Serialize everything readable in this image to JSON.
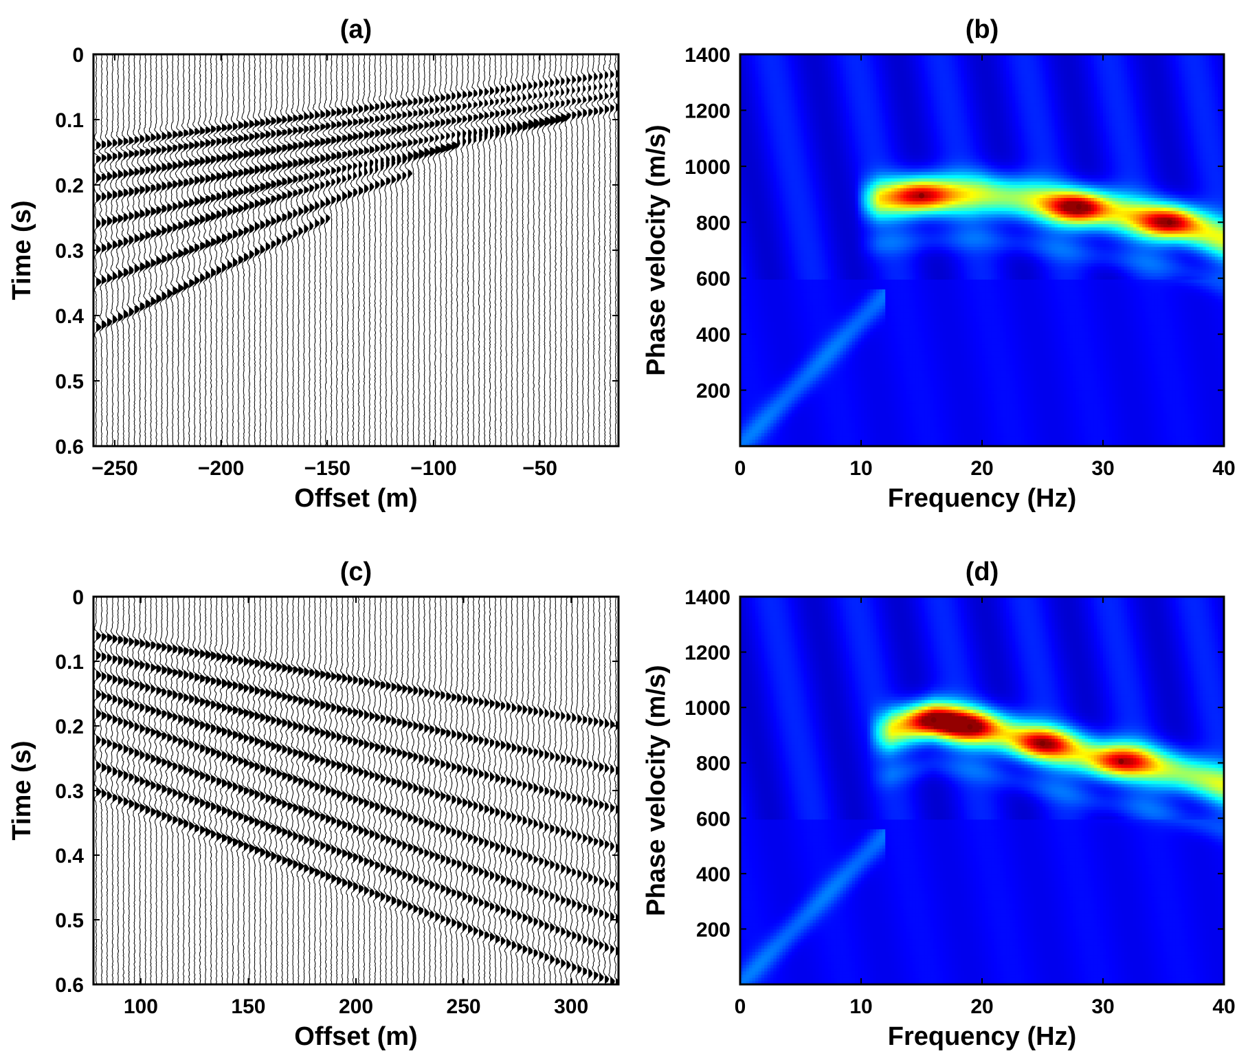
{
  "chart_data": [
    {
      "type": "seismogram",
      "panel": "(a)",
      "title": "(a)",
      "xlabel": "Offset (m)",
      "ylabel": "Time (s)",
      "xlim": [
        -260,
        -13
      ],
      "ylim": [
        0,
        0.6
      ],
      "y_reversed": true,
      "xticks": [
        "−250",
        "−200",
        "−150",
        "−100",
        "−50"
      ],
      "xtick_values": [
        -250,
        -200,
        -150,
        -100,
        -50
      ],
      "yticks": [
        "0",
        "0.1",
        "0.2",
        "0.3",
        "0.4",
        "0.5",
        "0.6"
      ],
      "ytick_values": [
        0,
        0.1,
        0.2,
        0.3,
        0.4,
        0.5,
        0.6
      ],
      "trace_count": 96,
      "wiggle_fill": "#000000",
      "events": [
        {
          "x": [
            -260,
            -13
          ],
          "t": [
            0.14,
            0.03
          ]
        },
        {
          "x": [
            -260,
            -13
          ],
          "t": [
            0.16,
            0.045
          ]
        },
        {
          "x": [
            -260,
            -13
          ],
          "t": [
            0.19,
            0.06
          ]
        },
        {
          "x": [
            -260,
            -13
          ],
          "t": [
            0.22,
            0.08
          ]
        },
        {
          "x": [
            -260,
            -40
          ],
          "t": [
            0.26,
            0.1
          ]
        },
        {
          "x": [
            -260,
            -90
          ],
          "t": [
            0.3,
            0.14
          ]
        },
        {
          "x": [
            -260,
            -110
          ],
          "t": [
            0.35,
            0.18
          ]
        },
        {
          "x": [
            -260,
            -150
          ],
          "t": [
            0.42,
            0.25
          ]
        }
      ]
    },
    {
      "type": "heatmap",
      "panel": "(b)",
      "title": "(b)",
      "xlabel": "Frequency (Hz)",
      "ylabel": "Phase velocity (m/s)",
      "xlim": [
        0,
        40
      ],
      "ylim": [
        0,
        1400
      ],
      "xticks": [
        "0",
        "10",
        "20",
        "30",
        "40"
      ],
      "xtick_values": [
        0,
        10,
        20,
        30,
        40
      ],
      "yticks": [
        "200",
        "400",
        "600",
        "800",
        "1000",
        "1200",
        "1400"
      ],
      "ytick_values": [
        200,
        400,
        600,
        800,
        1000,
        1200,
        1400
      ],
      "colormap": "jet",
      "background_color": "#1e3a8f",
      "ridge": [
        [
          11,
          880
        ],
        [
          15,
          895
        ],
        [
          20,
          900
        ],
        [
          24,
          880
        ],
        [
          28,
          850
        ],
        [
          32,
          825
        ],
        [
          36,
          795
        ],
        [
          40,
          740
        ]
      ],
      "peaks": [
        {
          "f": 15,
          "v": 895,
          "amp": 0.85
        },
        {
          "f": 28,
          "v": 855,
          "amp": 1.0
        },
        {
          "f": 35.5,
          "v": 800,
          "amp": 0.9
        }
      ]
    },
    {
      "type": "seismogram",
      "panel": "(c)",
      "title": "(c)",
      "xlabel": "Offset (m)",
      "ylabel": "Time (s)",
      "xlim": [
        78,
        322
      ],
      "ylim": [
        0,
        0.6
      ],
      "y_reversed": true,
      "xticks": [
        "100",
        "150",
        "200",
        "250",
        "300"
      ],
      "xtick_values": [
        100,
        150,
        200,
        250,
        300
      ],
      "yticks": [
        "0",
        "0.1",
        "0.2",
        "0.3",
        "0.4",
        "0.5",
        "0.6"
      ],
      "ytick_values": [
        0,
        0.1,
        0.2,
        0.3,
        0.4,
        0.5,
        0.6
      ],
      "trace_count": 96,
      "wiggle_fill": "#000000",
      "events": [
        {
          "x": [
            78,
            322
          ],
          "t": [
            0.06,
            0.2
          ]
        },
        {
          "x": [
            78,
            322
          ],
          "t": [
            0.09,
            0.27
          ]
        },
        {
          "x": [
            78,
            322
          ],
          "t": [
            0.12,
            0.33
          ]
        },
        {
          "x": [
            78,
            322
          ],
          "t": [
            0.15,
            0.39
          ]
        },
        {
          "x": [
            78,
            322
          ],
          "t": [
            0.18,
            0.45
          ]
        },
        {
          "x": [
            78,
            322
          ],
          "t": [
            0.22,
            0.5
          ]
        },
        {
          "x": [
            78,
            322
          ],
          "t": [
            0.26,
            0.55
          ]
        },
        {
          "x": [
            78,
            322
          ],
          "t": [
            0.3,
            0.6
          ]
        }
      ]
    },
    {
      "type": "heatmap",
      "panel": "(d)",
      "title": "(d)",
      "xlabel": "Frequency (Hz)",
      "ylabel": "Phase velocity (m/s)",
      "xlim": [
        0,
        40
      ],
      "ylim": [
        0,
        1400
      ],
      "xticks": [
        "0",
        "10",
        "20",
        "30",
        "40"
      ],
      "xtick_values": [
        0,
        10,
        20,
        30,
        40
      ],
      "yticks": [
        "200",
        "400",
        "600",
        "800",
        "1000",
        "1200",
        "1400"
      ],
      "ytick_values": [
        200,
        400,
        600,
        800,
        1000,
        1200,
        1400
      ],
      "colormap": "jet",
      "background_color": "#1e3a8f",
      "ridge": [
        [
          12,
          910
        ],
        [
          16,
          955
        ],
        [
          20,
          925
        ],
        [
          25,
          870
        ],
        [
          30,
          815
        ],
        [
          33,
          800
        ],
        [
          36,
          770
        ],
        [
          40,
          720
        ]
      ],
      "peaks": [
        {
          "f": 16,
          "v": 955,
          "amp": 1.0
        },
        {
          "f": 19,
          "v": 930,
          "amp": 0.85
        },
        {
          "f": 25,
          "v": 870,
          "amp": 0.8
        },
        {
          "f": 31.5,
          "v": 805,
          "amp": 0.75
        }
      ]
    }
  ]
}
